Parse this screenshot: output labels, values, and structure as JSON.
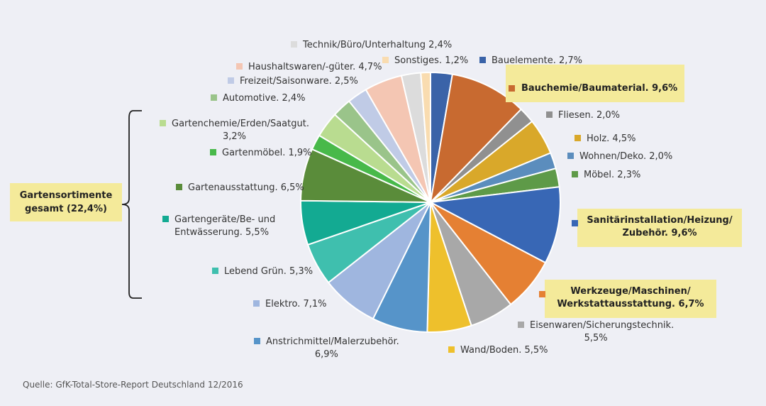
{
  "chart_data": {
    "type": "pie",
    "title": "",
    "group": {
      "label_line1": "Gartensortimente",
      "label_line2": "gesamt (22,4%)"
    },
    "source": "Quelle: GfK-Total-Store-Report Deutschland 12/2016",
    "slices": [
      {
        "name": "Bauelemente.",
        "value": 2.7,
        "display": "2,7%",
        "color": "#3a63a8"
      },
      {
        "name": "Bauchemie/Baumaterial.",
        "value": 9.6,
        "display": "9,6%",
        "color": "#c86a30",
        "highlight": true
      },
      {
        "name": "Fliesen.",
        "value": 2.0,
        "display": "2,0%",
        "color": "#909090"
      },
      {
        "name": "Holz.",
        "value": 4.5,
        "display": "4,5%",
        "color": "#d9a82a"
      },
      {
        "name": "Wohnen/Deko.",
        "value": 2.0,
        "display": "2,0%",
        "color": "#5b8dbd"
      },
      {
        "name": "Möbel.",
        "value": 2.3,
        "display": "2,3%",
        "color": "#5e9a48"
      },
      {
        "name": "Sanitärinstallation/Heizung/",
        "name2": "Zubehör.",
        "value": 9.6,
        "display": "9,6%",
        "color": "#3867b5",
        "highlight": true
      },
      {
        "name": "Werkzeuge/Maschinen/",
        "name2": "Werkstattausstattung.",
        "value": 6.7,
        "display": "6,7%",
        "color": "#e58033",
        "highlight": true
      },
      {
        "name": "Eisenwaren/Sicherungstechnik.",
        "value": 5.5,
        "display": "5,5%",
        "color": "#a8a8a8"
      },
      {
        "name": "Wand/Boden.",
        "value": 5.5,
        "display": "5,5%",
        "color": "#eec02c"
      },
      {
        "name": "Anstrichmittel/Malerzubehör.",
        "value": 6.9,
        "display": "6,9%",
        "color": "#5694c9"
      },
      {
        "name": "Elektro.",
        "value": 7.1,
        "display": "7,1%",
        "color": "#9fb6df"
      },
      {
        "name": "Lebend Grün.",
        "value": 5.3,
        "display": "5,3%",
        "color": "#3fbfae"
      },
      {
        "name": "Gartengeräte/Be- und",
        "name2": "Entwässerung.",
        "value": 5.5,
        "display": "5,5%",
        "color": "#13aa92"
      },
      {
        "name": "Gartenausstattung.",
        "value": 6.5,
        "display": "6,5%",
        "color": "#5a8c3a"
      },
      {
        "name": "Gartenmöbel.",
        "value": 1.9,
        "display": "1,9%",
        "color": "#48b94a"
      },
      {
        "name": "Gartenchemie/Erden/Saatgut.",
        "value": 3.2,
        "display": "3,2%",
        "color": "#b9dc90"
      },
      {
        "name": "Automotive.",
        "value": 2.4,
        "display": "2,4%",
        "color": "#9ac48a"
      },
      {
        "name": "Freizeit/Saisonware.",
        "value": 2.5,
        "display": "2,5%",
        "color": "#c0cbe6"
      },
      {
        "name": "Haushaltswaren/-güter.",
        "value": 4.7,
        "display": "4,7%",
        "color": "#f4c6b3"
      },
      {
        "name": "Technik/Büro/Unterhaltung",
        "value": 2.4,
        "display": "2,4%",
        "color": "#dcdcdc"
      },
      {
        "name": "Sonstiges.",
        "value": 1.2,
        "display": "1,2%",
        "color": "#f9dcb0"
      }
    ]
  }
}
